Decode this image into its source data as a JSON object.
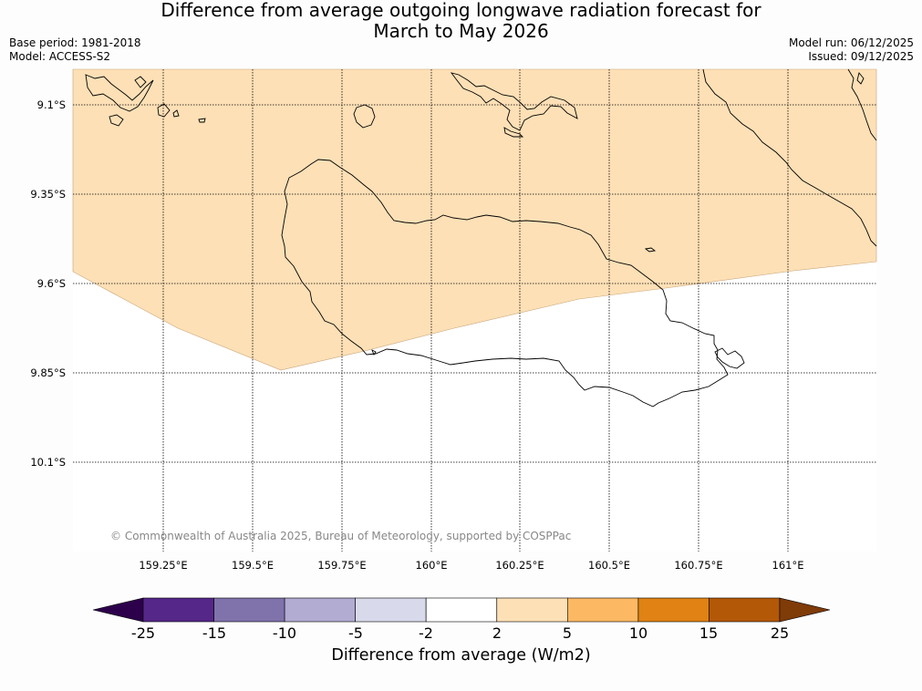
{
  "title": {
    "line1": "Difference from average outgoing longwave radiation forecast for",
    "line2": "March to May 2026"
  },
  "meta": {
    "base_period": "Base period: 1981-2018",
    "model": "Model: ACCESS-S2",
    "model_run": "Model run: 06/12/2025",
    "issued": "Issued: 09/12/2025"
  },
  "map": {
    "lat_ticks": [
      "9.1°S",
      "9.35°S",
      "9.6°S",
      "9.85°S",
      "10.1°S"
    ],
    "lon_ticks": [
      "159.25°E",
      "159.5°E",
      "159.75°E",
      "160°E",
      "160.25°E",
      "160.5°E",
      "160.75°E",
      "161°E"
    ],
    "copyright": "© Commonwealth of Australia 2025, Bureau of Meteorology, supported by COSPPac",
    "anomaly_category": "2 to 5"
  },
  "colorbar": {
    "labels": [
      "-25",
      "-15",
      "-10",
      "-5",
      "-2",
      "2",
      "5",
      "10",
      "15",
      "25"
    ],
    "colors": [
      "#542788",
      "#8073ac",
      "#b2abd2",
      "#d8daeb",
      "#ffffff",
      "#fee0b6",
      "#fdb863",
      "#e08214",
      "#b35806"
    ],
    "under_color": "#2d004b",
    "over_color": "#7f3b08",
    "title": "Difference from average (W/m2)"
  }
}
